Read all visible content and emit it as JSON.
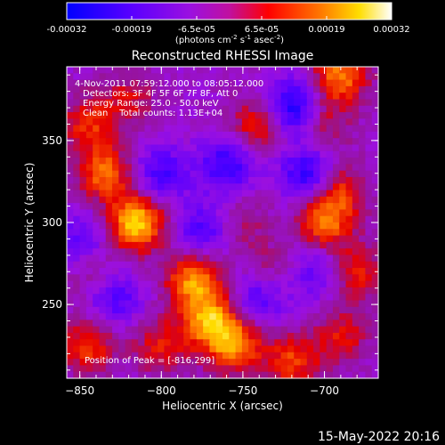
{
  "colorbar": {
    "ticks": [
      "-0.00032",
      "-0.00019",
      "-6.5e-05",
      "6.5e-05",
      "0.00019",
      "0.00032"
    ],
    "unit_label": "(photons cm-2 s-1 asec-2)",
    "colors": [
      "#0000ff",
      "#4400ff",
      "#8800ff",
      "#cc00cc",
      "#ff0000",
      "#ff6600",
      "#ffcc00",
      "#ffffff"
    ]
  },
  "chart_data": {
    "type": "heatmap",
    "title": "Reconstructed RHESSI Image",
    "xlabel": "Heliocentric X (arcsec)",
    "ylabel": "Heliocentric Y (arcsec)",
    "xlim": [
      -858,
      -667
    ],
    "ylim": [
      205,
      395
    ],
    "xticks": [
      -850,
      -800,
      -750,
      -700
    ],
    "yticks": [
      250,
      300,
      350
    ],
    "zlim": [
      -0.00032,
      0.00032
    ],
    "annotations": [
      "4-Nov-2011 07:59:12.000 to 08:05:12.000",
      "Detectors: 3F 4F 5F 6F 7F 8F, Att 0",
      "Energy Range: 25.0 - 50.0 keV",
      "Clean    Total counts: 1.13E+04"
    ],
    "peak_text": "Position of Peak = [-816,299]",
    "hotspots": [
      {
        "x": -815,
        "y": 300,
        "v": 0.00032
      },
      {
        "x": -835,
        "y": 330,
        "v": 0.00022
      },
      {
        "x": -780,
        "y": 265,
        "v": 0.00026
      },
      {
        "x": -770,
        "y": 240,
        "v": 0.00025
      },
      {
        "x": -755,
        "y": 225,
        "v": 0.00024
      },
      {
        "x": -800,
        "y": 225,
        "v": 0.00015
      },
      {
        "x": -845,
        "y": 225,
        "v": 0.00018
      },
      {
        "x": -740,
        "y": 360,
        "v": 0.00018
      },
      {
        "x": -690,
        "y": 390,
        "v": 0.00024
      },
      {
        "x": -700,
        "y": 360,
        "v": 0.00012
      },
      {
        "x": -690,
        "y": 320,
        "v": 0.00016
      },
      {
        "x": -700,
        "y": 300,
        "v": 0.00022
      },
      {
        "x": -680,
        "y": 270,
        "v": 0.00016
      },
      {
        "x": -690,
        "y": 230,
        "v": 0.00014
      },
      {
        "x": -720,
        "y": 215,
        "v": 0.00018
      },
      {
        "x": -845,
        "y": 360,
        "v": 0.00016
      },
      {
        "x": -820,
        "y": 375,
        "v": 0.00012
      },
      {
        "x": -750,
        "y": 300,
        "v": 8e-05
      },
      {
        "x": -735,
        "y": 270,
        "v": 0.0001
      },
      {
        "x": -840,
        "y": 265,
        "v": 0.0001
      }
    ],
    "coldspots": [
      {
        "x": -720,
        "y": 370,
        "v": -0.00025
      },
      {
        "x": -710,
        "y": 330,
        "v": -0.0002
      },
      {
        "x": -760,
        "y": 335,
        "v": -0.00018
      },
      {
        "x": -800,
        "y": 330,
        "v": -0.00016
      },
      {
        "x": -830,
        "y": 255,
        "v": -0.00018
      },
      {
        "x": -775,
        "y": 295,
        "v": -0.00015
      },
      {
        "x": -740,
        "y": 255,
        "v": -0.00016
      },
      {
        "x": -705,
        "y": 270,
        "v": -0.00012
      },
      {
        "x": -850,
        "y": 290,
        "v": -0.00012
      }
    ]
  },
  "footer": {
    "date": "15-May-2022 20:16"
  }
}
